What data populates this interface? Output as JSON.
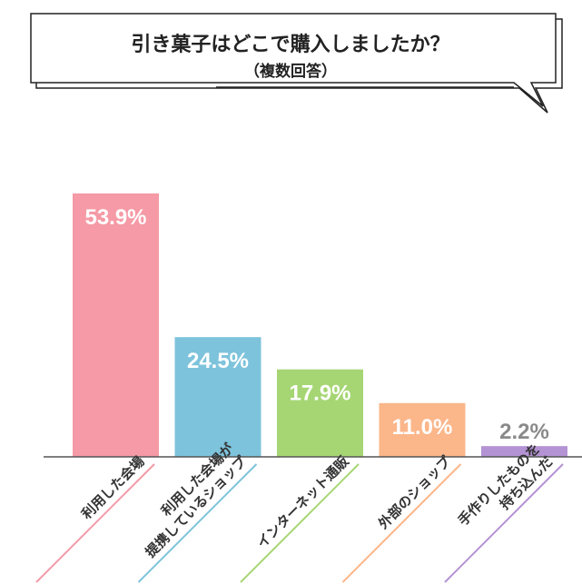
{
  "title": {
    "line1": "引き菓子はどこで購入しましたか？",
    "line2": "（複数回答）"
  },
  "chart_data": {
    "type": "bar",
    "categories": [
      [
        "利用した会場"
      ],
      [
        "利用した会場が",
        "提携しているショップ"
      ],
      [
        "インターネット通販"
      ],
      [
        "外部のショップ"
      ],
      [
        "手作りしたものを",
        "持ち込んだ"
      ]
    ],
    "values": [
      53.9,
      24.5,
      17.9,
      11.0,
      2.2
    ],
    "value_labels": [
      "53.9%",
      "24.5%",
      "17.9%",
      "11.0%",
      "2.2%"
    ],
    "colors": [
      "#f59aa6",
      "#7dc3db",
      "#a6d674",
      "#fbb68a",
      "#b493d4"
    ],
    "value_label_colors": [
      "#ffffff",
      "#ffffff",
      "#ffffff",
      "#ffffff",
      "#8a8a8a"
    ],
    "ylim": [
      0,
      53.9
    ],
    "grid": false,
    "legend": "none"
  }
}
